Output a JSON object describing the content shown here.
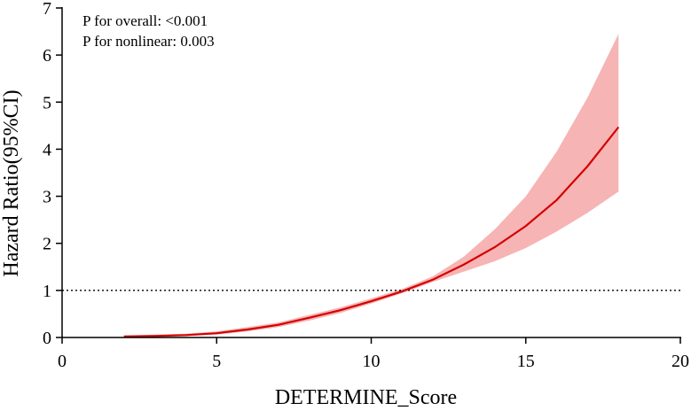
{
  "chart_data": {
    "type": "line",
    "xlabel": "DETERMINE_Score",
    "ylabel": "Hazard Ratio(95%CI)",
    "xlim": [
      0,
      20
    ],
    "ylim": [
      0,
      7
    ],
    "x_ticks": [
      "0",
      "5",
      "10",
      "15",
      "20"
    ],
    "y_ticks": [
      "0",
      "1",
      "2",
      "3",
      "4",
      "5",
      "6",
      "7"
    ],
    "reference_line_y": 1,
    "annotations": [
      "P for overall:  <0.001",
      "P for nonlinear: 0.003"
    ],
    "colors": {
      "line": "#d40000",
      "band": "#f4a7a7",
      "reference": "#000000"
    },
    "x": [
      2,
      3,
      4,
      5,
      6,
      7,
      8,
      9,
      10,
      11,
      12,
      13,
      14,
      15,
      16,
      17,
      18
    ],
    "hr": [
      0.02,
      0.03,
      0.05,
      0.09,
      0.17,
      0.27,
      0.42,
      0.58,
      0.77,
      0.98,
      1.23,
      1.55,
      1.92,
      2.37,
      2.92,
      3.64,
      4.47
    ],
    "ci_lower": [
      0.01,
      0.02,
      0.03,
      0.06,
      0.13,
      0.22,
      0.36,
      0.52,
      0.72,
      0.94,
      1.18,
      1.4,
      1.62,
      1.9,
      2.25,
      2.65,
      3.1
    ],
    "ci_upper": [
      0.04,
      0.06,
      0.08,
      0.13,
      0.22,
      0.32,
      0.48,
      0.64,
      0.83,
      1.03,
      1.3,
      1.72,
      2.3,
      3.0,
      3.95,
      5.1,
      6.45
    ],
    "grid": false,
    "legend": "none"
  }
}
